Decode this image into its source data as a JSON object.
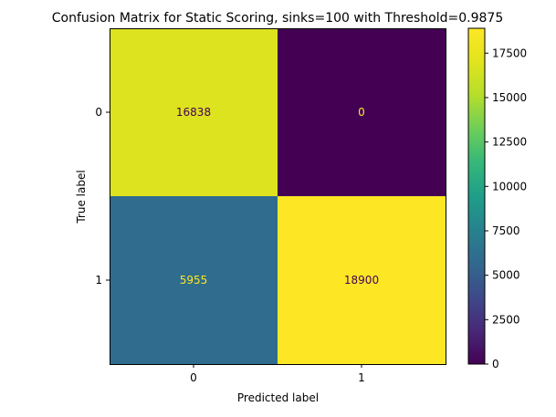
{
  "chart_data": {
    "type": "heatmap",
    "title": "Confusion Matrix for Static Scoring, sinks=100 with Threshold=0.9875",
    "xlabel": "Predicted label",
    "ylabel": "True label",
    "x_categories": [
      "0",
      "1"
    ],
    "y_categories": [
      "0",
      "1"
    ],
    "matrix": [
      [
        16838,
        0
      ],
      [
        5955,
        18900
      ]
    ],
    "colormap": "viridis",
    "color_range": [
      0,
      18900
    ],
    "colorbar_ticks": [
      0,
      2500,
      5000,
      7500,
      10000,
      12500,
      15000,
      17500
    ],
    "colorbar_tick_labels": [
      "0",
      "2500",
      "5000",
      "7500",
      "10000",
      "12500",
      "15000",
      "17500"
    ],
    "grid": false
  },
  "colors": {
    "low_text": "#fde725",
    "high_text": "#440154"
  }
}
